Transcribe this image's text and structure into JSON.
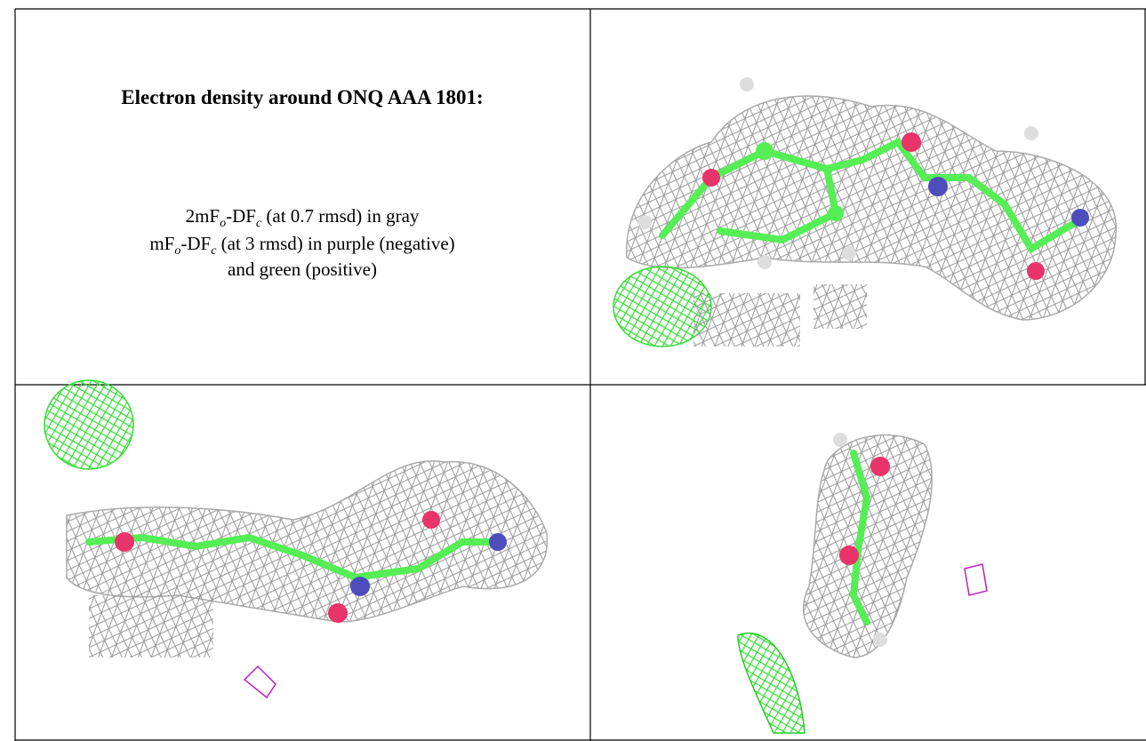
{
  "header": {
    "title": "Electron density around ONQ AAA 1801:"
  },
  "caption": {
    "line1": [
      "2mF",
      "o",
      "-DF",
      "c",
      " (at 0.7 rmsd) in gray"
    ],
    "line2": [
      "mF",
      "o",
      "-DF",
      "c",
      " (at 3 rmsd) in purple (negative)"
    ],
    "line3": "and green (positive)"
  }
}
